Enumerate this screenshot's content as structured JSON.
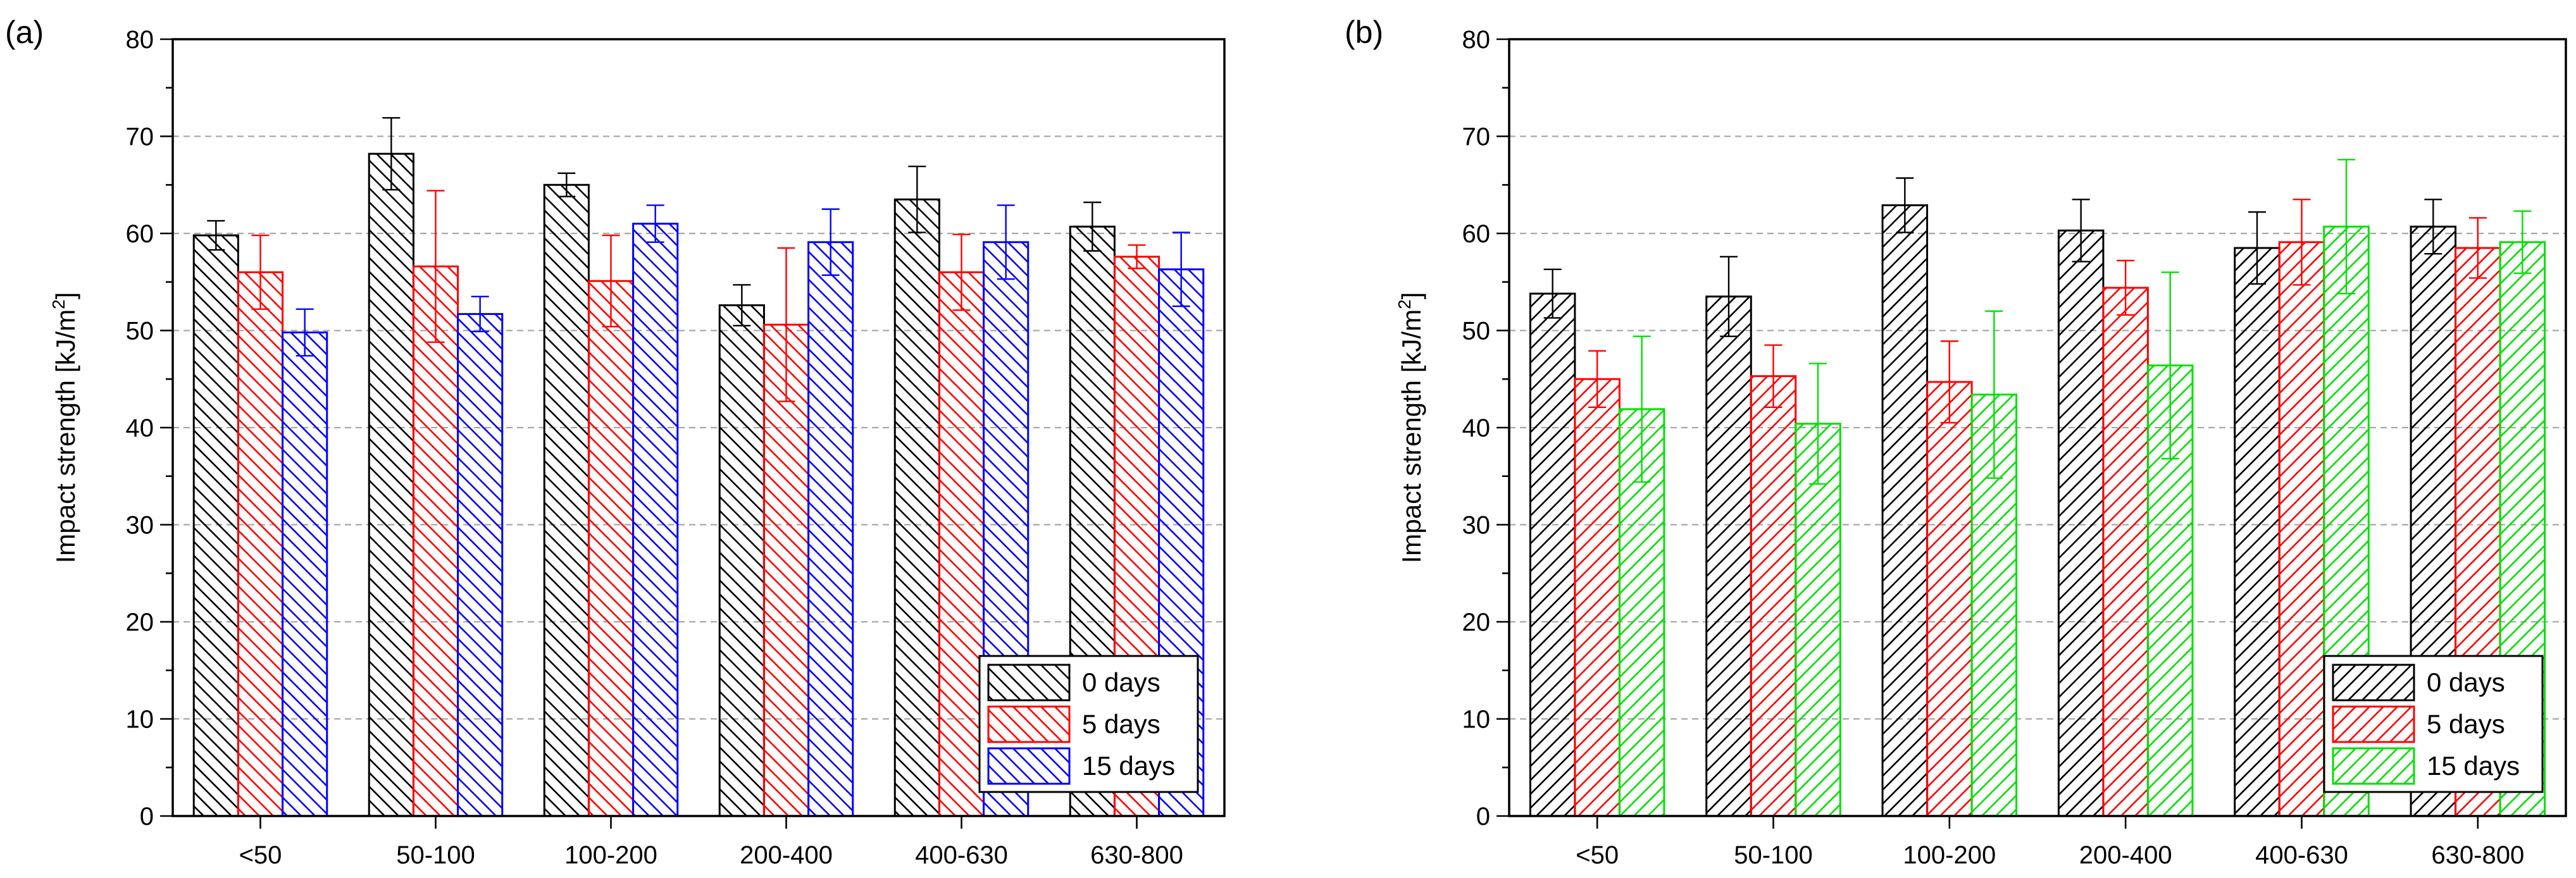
{
  "chart_data": [
    {
      "type": "bar",
      "panel_label": "(a)",
      "ylabel": "Impact strength [kJ/m",
      "ylabel_sup": "2",
      "ylabel_close": "]",
      "ylim": [
        0,
        80
      ],
      "yticks": [
        0,
        10,
        20,
        30,
        40,
        50,
        60,
        70,
        80
      ],
      "grid": "dashed horizontal",
      "legend_position": "bottom-right",
      "categories": [
        "<50",
        "50-100",
        "100-200",
        "200-400",
        "400-630",
        "630-800"
      ],
      "series": [
        {
          "name": "0 days",
          "color": "#000000",
          "hatch": "backslash",
          "values": [
            59.8,
            68.2,
            65.0,
            52.6,
            63.5,
            60.7
          ],
          "errors": [
            1.5,
            3.7,
            1.2,
            2.1,
            3.4,
            2.5
          ]
        },
        {
          "name": "5 days",
          "color": "#ff0000",
          "hatch": "backslash",
          "values": [
            56.0,
            56.6,
            55.1,
            50.6,
            56.0,
            57.6
          ],
          "errors": [
            3.8,
            7.8,
            4.7,
            7.9,
            3.9,
            1.2
          ]
        },
        {
          "name": "15 days",
          "color": "#0000ff",
          "hatch": "backslash",
          "values": [
            49.8,
            51.7,
            61.0,
            59.1,
            59.1,
            56.3
          ],
          "errors": [
            2.4,
            1.8,
            1.9,
            3.4,
            3.8,
            3.8
          ]
        }
      ]
    },
    {
      "type": "bar",
      "panel_label": "(b)",
      "ylabel": "Impact strength [kJ/m",
      "ylabel_sup": "2",
      "ylabel_close": "]",
      "ylim": [
        0,
        80
      ],
      "yticks": [
        0,
        10,
        20,
        30,
        40,
        50,
        60,
        70,
        80
      ],
      "grid": "dashed horizontal",
      "legend_position": "bottom-right",
      "categories": [
        "<50",
        "50-100",
        "100-200",
        "200-400",
        "400-630",
        "630-800"
      ],
      "series": [
        {
          "name": "0 days",
          "color": "#000000",
          "hatch": "slash",
          "values": [
            53.8,
            53.5,
            62.9,
            60.3,
            58.5,
            60.7
          ],
          "errors": [
            2.5,
            4.1,
            2.8,
            3.2,
            3.7,
            2.8
          ]
        },
        {
          "name": "5 days",
          "color": "#ff0000",
          "hatch": "slash",
          "values": [
            45.0,
            45.3,
            44.7,
            54.4,
            59.1,
            58.5
          ],
          "errors": [
            2.9,
            3.2,
            4.2,
            2.8,
            4.4,
            3.1
          ]
        },
        {
          "name": "15 days",
          "color": "#00e000",
          "hatch": "slash",
          "values": [
            41.9,
            40.4,
            43.4,
            46.4,
            60.7,
            59.1
          ],
          "errors": [
            7.5,
            6.2,
            8.6,
            9.6,
            6.9,
            3.2
          ]
        }
      ]
    }
  ]
}
